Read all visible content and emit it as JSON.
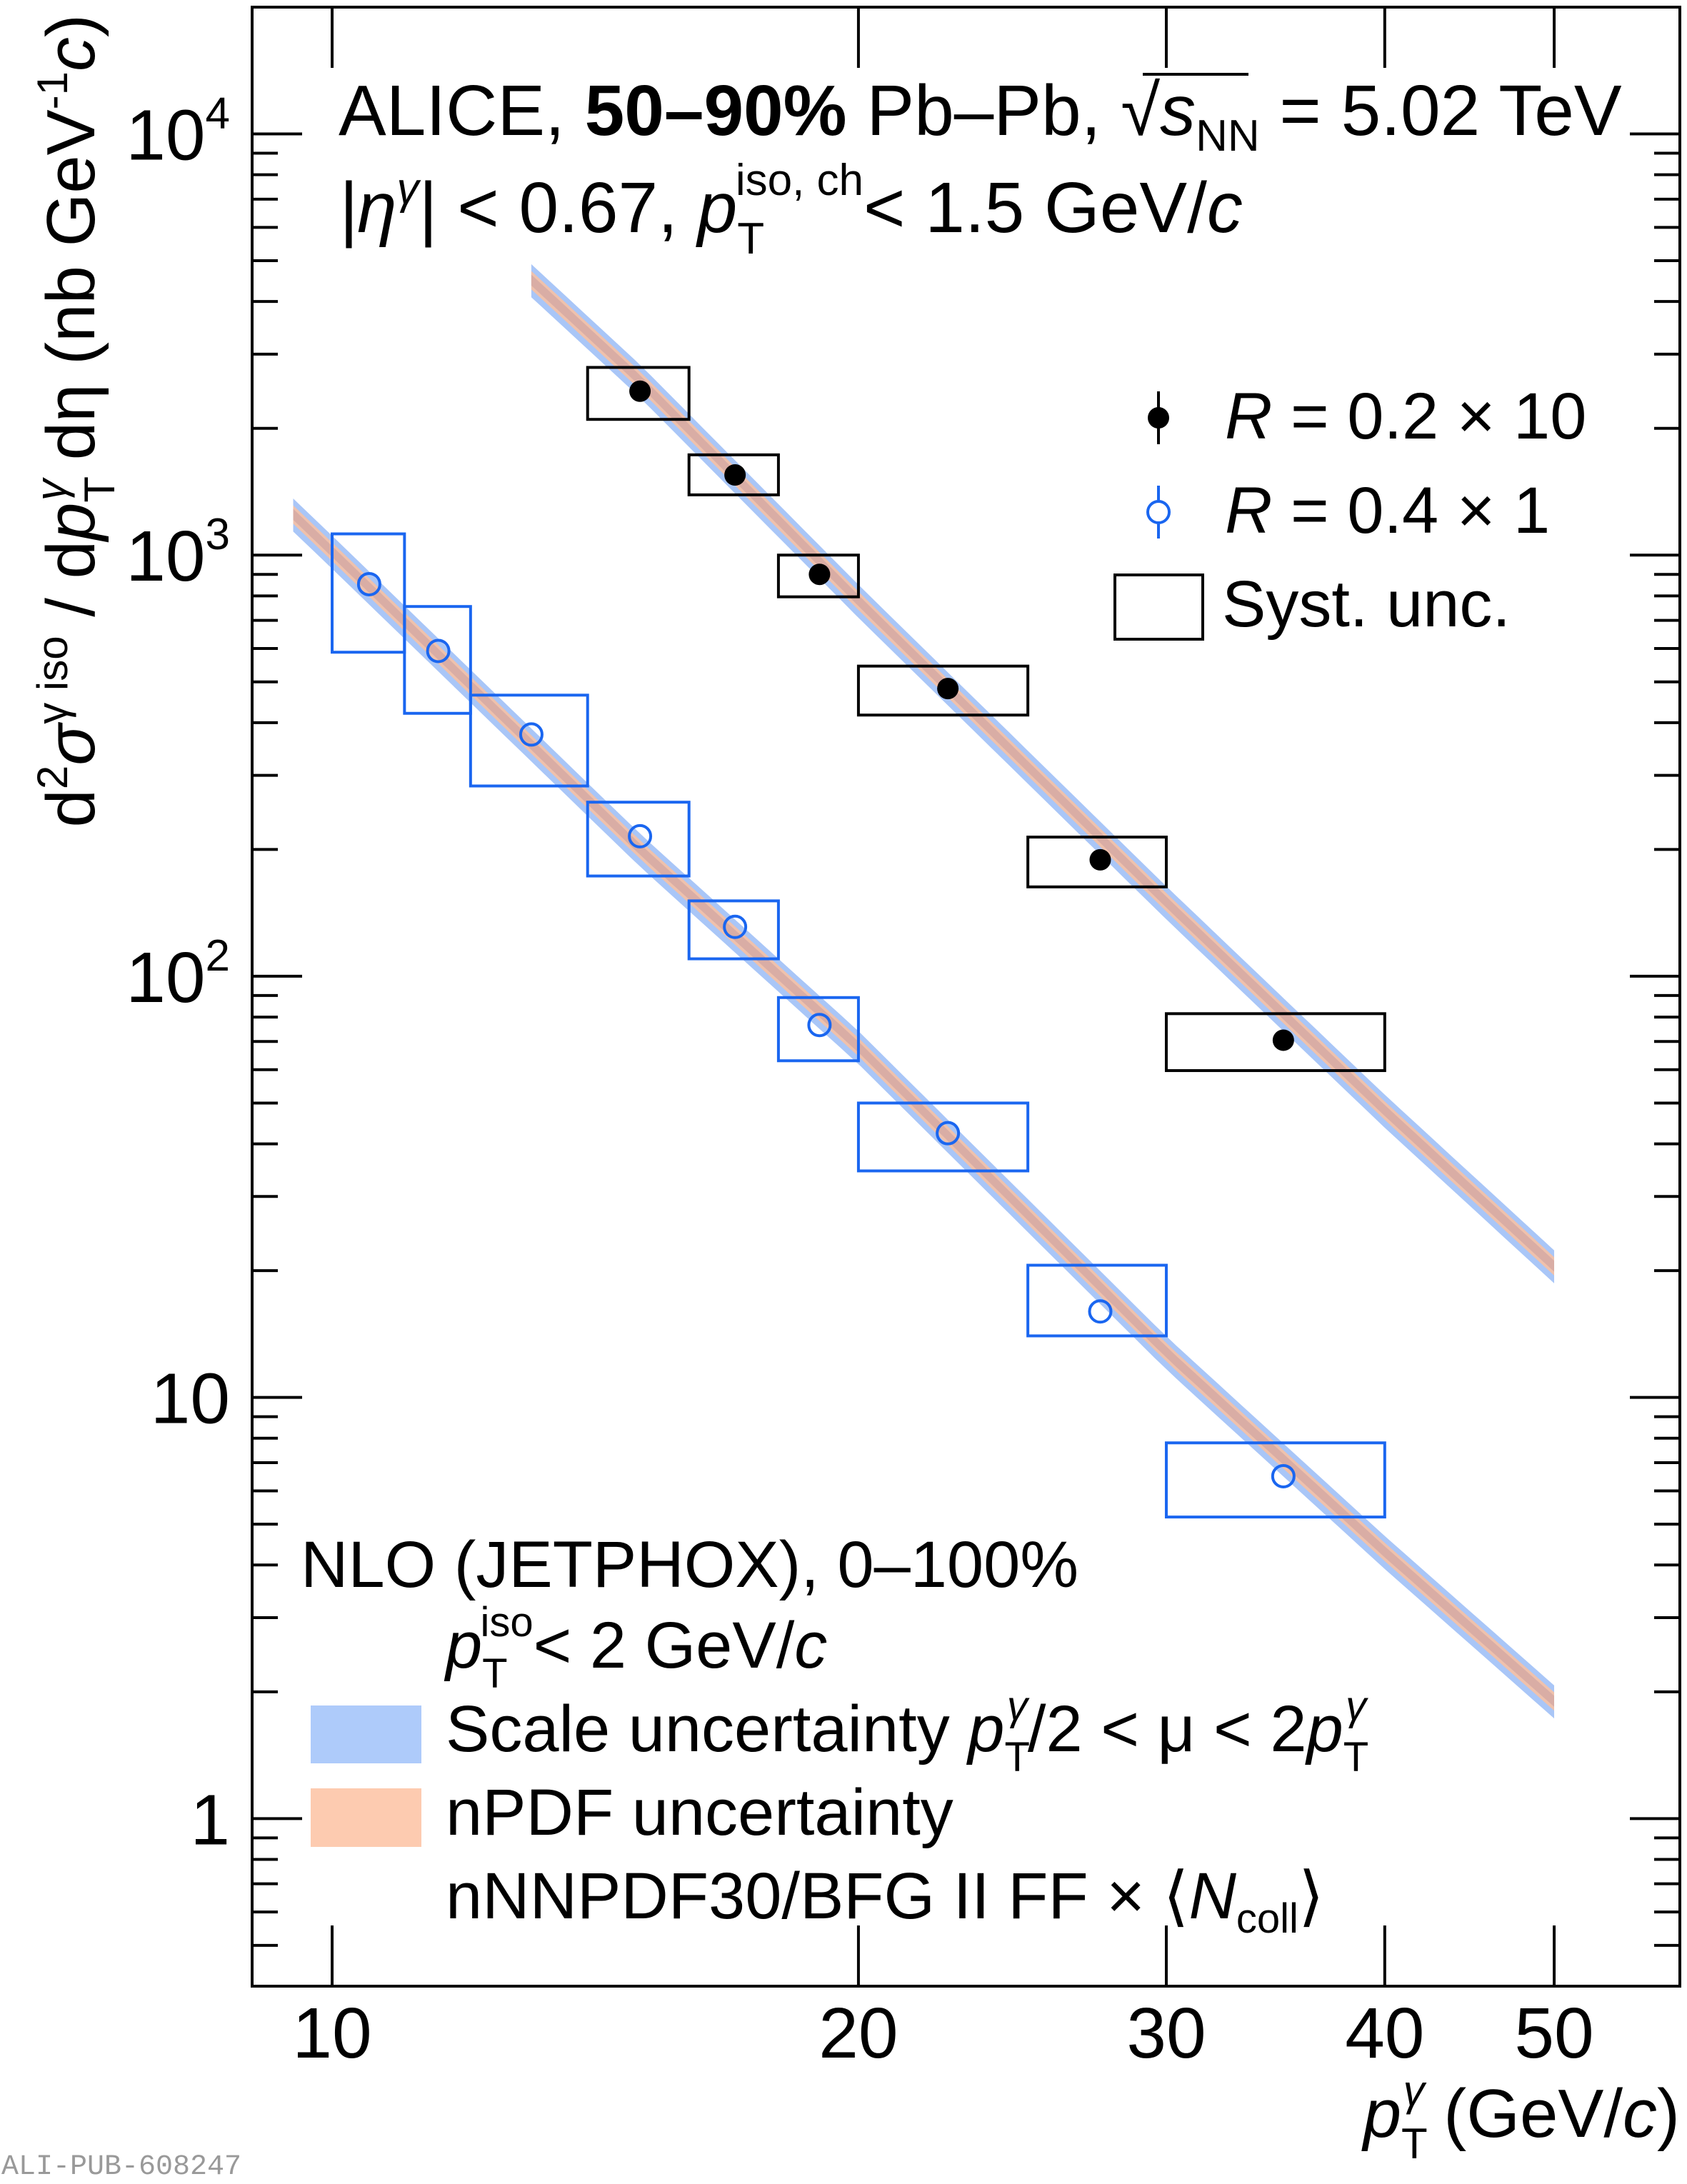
{
  "chart_data": {
    "type": "scatter",
    "xscale": "log",
    "yscale": "log",
    "xlim": [
      9,
      59
    ],
    "ylim": [
      0.4,
      20000
    ],
    "grid": false,
    "xlabel": {
      "main": "p",
      "sub": "T",
      "sup": "γ",
      "rest": " (GeV/",
      "unit_c": "c",
      "close": ")"
    },
    "ylabel": {
      "d": "d",
      "two": "2",
      "sigma": "σ",
      "sup": "γ iso",
      "mid": " / d",
      "p": "p",
      "psub": "T",
      "psup": "γ",
      "deta": " dη",
      "unit": " (nb GeV",
      "unitsup": "-1",
      "c": "c",
      "close": ")"
    },
    "x_ticks": [
      {
        "value": 10,
        "label": "10"
      },
      {
        "value": 20,
        "label": "20"
      },
      {
        "value": 30,
        "label": "30"
      },
      {
        "value": 40,
        "label": "40"
      },
      {
        "value": 50,
        "label": "50"
      }
    ],
    "y_ticks": [
      {
        "value": 10000,
        "base": "10",
        "exp": "4"
      },
      {
        "value": 1000,
        "base": "10",
        "exp": "3"
      },
      {
        "value": 100,
        "base": "10",
        "exp": "2"
      },
      {
        "value": 10,
        "base": "10",
        "exp": ""
      },
      {
        "value": 1,
        "base": "1",
        "exp": ""
      }
    ],
    "series": [
      {
        "name": "R = 0.2 × 10",
        "marker": "filled-circle",
        "color": "#000000",
        "x": [
          15,
          17,
          19,
          22.5,
          27.5,
          35
        ],
        "y": [
          2450,
          1550,
          900,
          482,
          189,
          70.5
        ],
        "syst_bins": [
          [
            14,
            16
          ],
          [
            16,
            18
          ],
          [
            18,
            20
          ],
          [
            20,
            25
          ],
          [
            25,
            30
          ],
          [
            30,
            40
          ]
        ],
        "syst_low": [
          2100,
          1390,
          796,
          417,
          163,
          59.7
        ],
        "syst_high": [
          2790,
          1730,
          1000,
          545,
          214,
          81.5
        ]
      },
      {
        "name": "R = 0.4 × 1",
        "marker": "open-circle",
        "color": "#1a66f0",
        "x": [
          10.5,
          11.5,
          13,
          15,
          17,
          19,
          22.5,
          27.5,
          35
        ],
        "y": [
          853,
          592,
          375,
          215,
          131,
          76.6,
          42.4,
          16.0,
          6.5
        ],
        "syst_bins": [
          [
            10,
            11
          ],
          [
            11,
            12
          ],
          [
            12,
            14
          ],
          [
            14,
            16
          ],
          [
            16,
            18
          ],
          [
            18,
            20
          ],
          [
            20,
            25
          ],
          [
            25,
            30
          ],
          [
            30,
            40
          ]
        ],
        "syst_low": [
          588,
          421,
          283,
          173,
          110,
          63,
          34.5,
          14.0,
          5.2
        ],
        "syst_high": [
          1123,
          755,
          465,
          259,
          151,
          89,
          50,
          20.6,
          7.8
        ]
      }
    ],
    "theory": [
      {
        "for": "R = 0.2 × 10",
        "x": [
          13,
          15,
          20,
          30,
          40,
          50
        ],
        "y": [
          4500,
          2600,
          780,
          150,
          48,
          20.5
        ],
        "scale_rel_unc": 0.09,
        "npdf_rel_unc": 0.05
      },
      {
        "for": "R = 0.4 × 1",
        "x": [
          9.5,
          10,
          15,
          20,
          30,
          40,
          50
        ],
        "y": [
          1250,
          1020,
          200,
          68,
          12.8,
          4.3,
          1.9
        ],
        "scale_rel_unc": 0.09,
        "npdf_rel_unc": 0.05
      }
    ],
    "colors": {
      "scale_band": "#a9c6f7",
      "npdf_band": "#fbbf9f",
      "r04": "#1a66f0",
      "r02": "#000000"
    },
    "legend_placement": "top-right"
  },
  "header": {
    "line1": {
      "a": "ALICE, ",
      "b": "50–90%",
      "c": " Pb–Pb, ",
      "s": "s",
      "nn": "NN",
      "d": " = 5.02 TeV"
    },
    "line2": {
      "a": "|η",
      "g": "γ",
      "b": "| < 0.67, ",
      "p": "p",
      "sub": "T",
      "sup": "iso, ch",
      "c": "< 1.5 GeV/",
      "unit_c": "c"
    }
  },
  "legend": {
    "r02": {
      "R": "R",
      "text": " = 0.2 × 10"
    },
    "r04": {
      "R": "R",
      "text": " = 0.4 × 1"
    },
    "syst": "Syst. unc."
  },
  "theory_legend": {
    "title": "NLO (JETPHOX), 0–100%",
    "iso": {
      "p": "p",
      "sub": "T",
      "sup": "iso",
      "rest": "< 2 GeV/",
      "unit_c": "c"
    },
    "scale": {
      "text": "Scale uncertainty ",
      "p": "p",
      "sub": "T",
      "sup": "γ",
      "mid": "/2 < μ < 2",
      "p2": "p",
      "sub2": "T",
      "sup2": "γ"
    },
    "npdf": "nPDF uncertainty",
    "pdf": {
      "text": "nNNPDF30/BFG II FF × ⟨",
      "N": "N",
      "coll": "coll",
      "close": "⟩"
    }
  },
  "watermark": "ALI-PUB-608247"
}
